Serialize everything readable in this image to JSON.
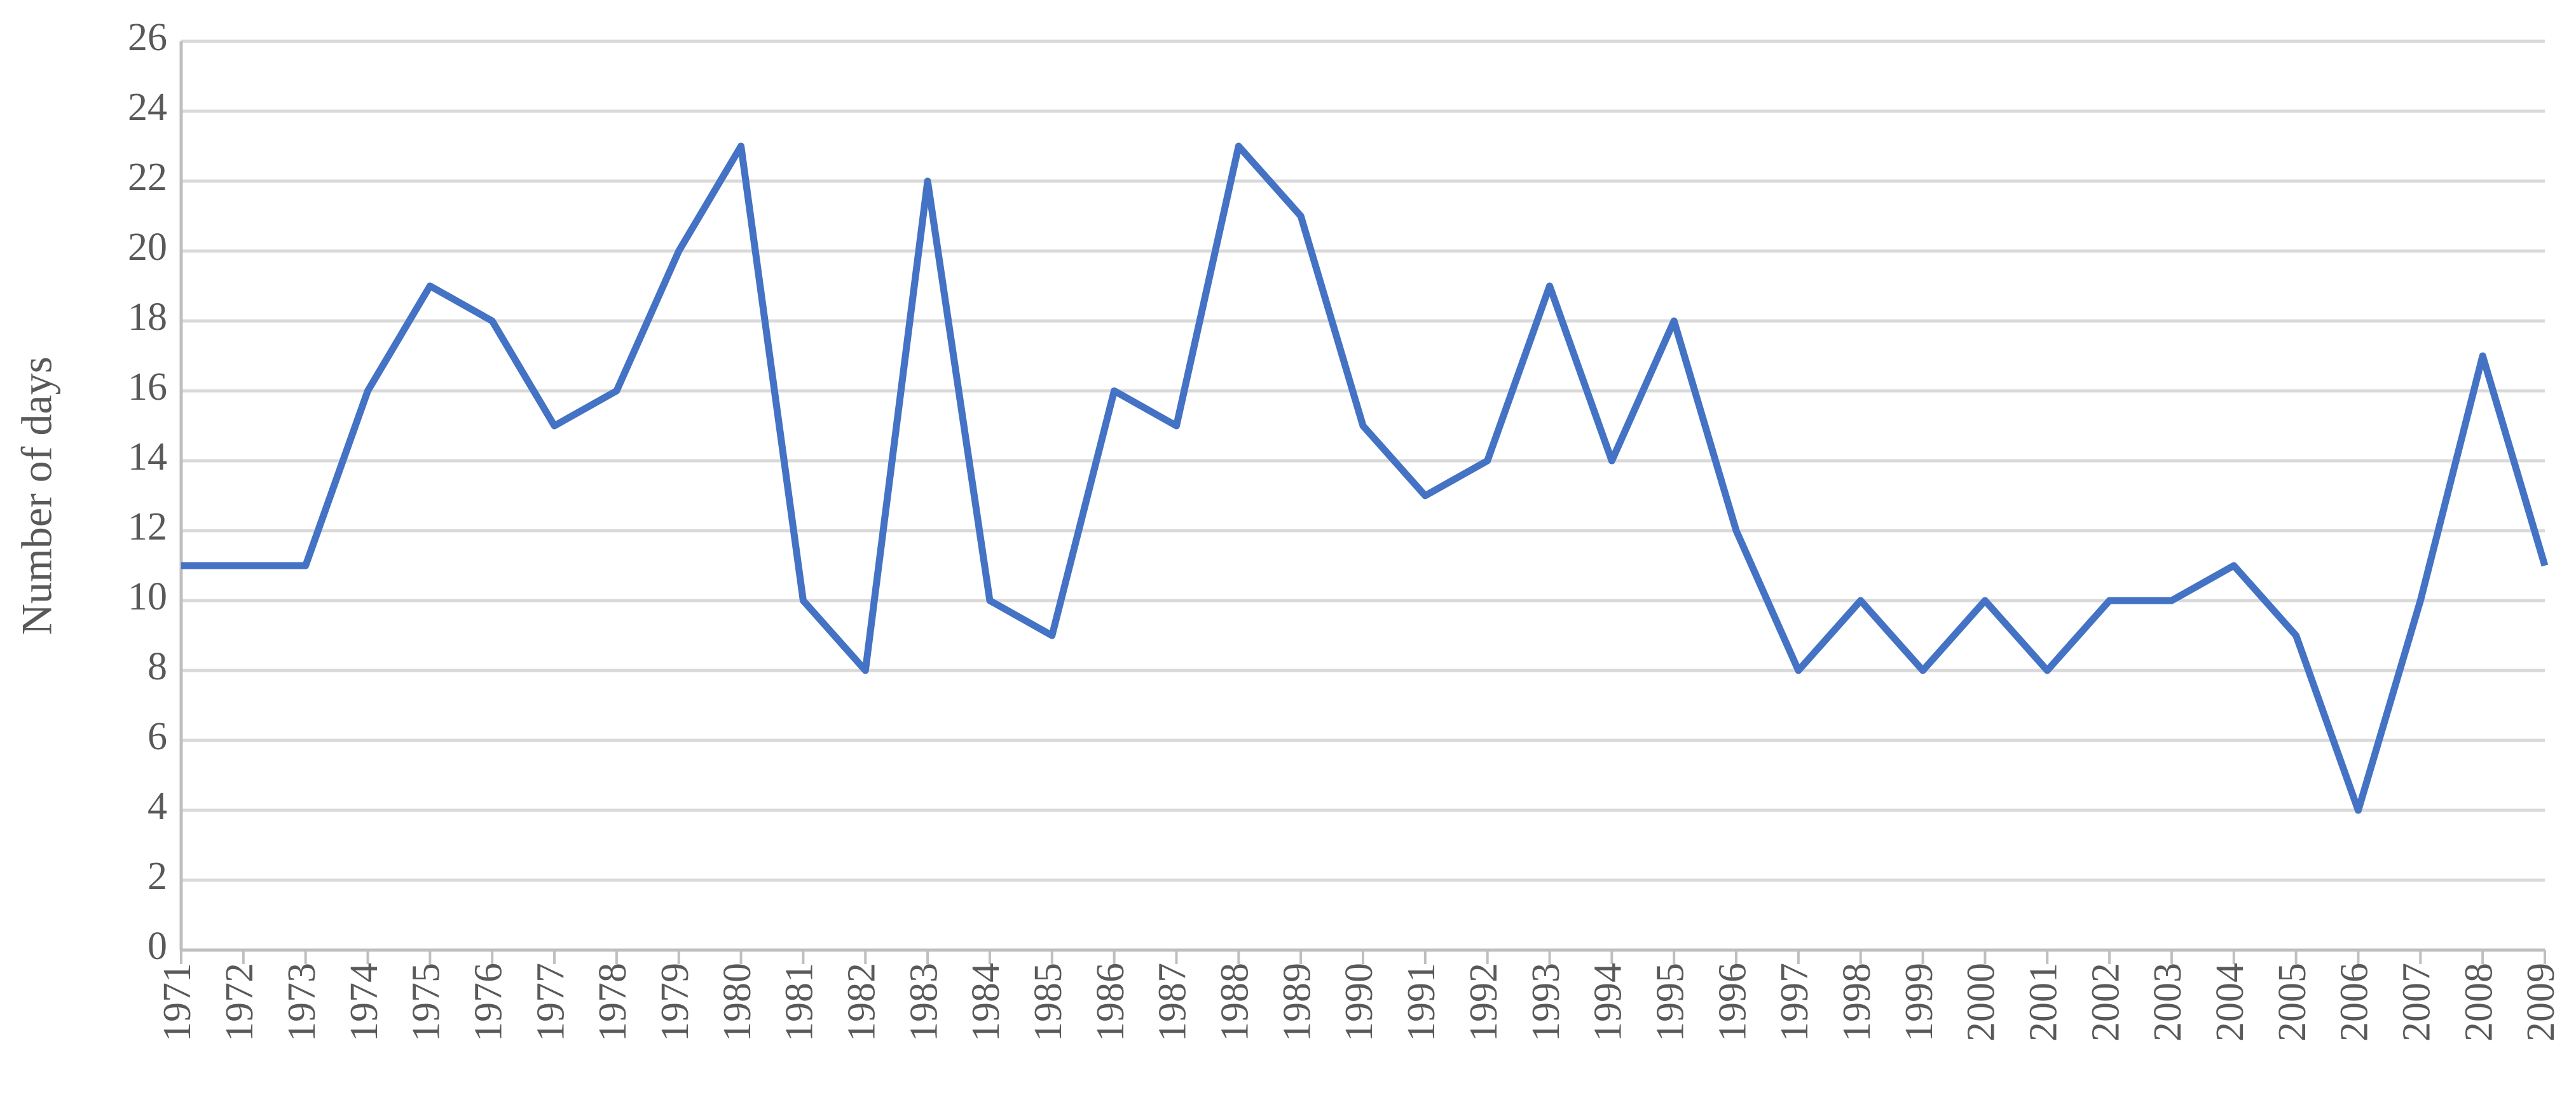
{
  "chart_data": {
    "type": "line",
    "y_label": "Number of days",
    "categories": [
      "1971",
      "1972",
      "1973",
      "1974",
      "1975",
      "1976",
      "1977",
      "1978",
      "1979",
      "1980",
      "1981",
      "1982",
      "1983",
      "1984",
      "1985",
      "1986",
      "1987",
      "1988",
      "1989",
      "1990",
      "1991",
      "1992",
      "1993",
      "1994",
      "1995",
      "1996",
      "1997",
      "1998",
      "1999",
      "2000",
      "2001",
      "2002",
      "2003",
      "2004",
      "2005",
      "2006",
      "2007",
      "2008",
      "2009"
    ],
    "values": [
      11,
      11,
      11,
      16,
      19,
      18,
      15,
      16,
      20,
      23,
      10,
      8,
      22,
      10,
      9,
      16,
      15,
      23,
      21,
      15,
      13,
      14,
      19,
      14,
      18,
      12,
      8,
      10,
      8,
      10,
      8,
      10,
      10,
      11,
      9,
      4,
      10,
      17,
      11
    ],
    "color": "#4472c4",
    "ylim": [
      0,
      26
    ],
    "yticks": [
      0,
      2,
      4,
      6,
      8,
      10,
      12,
      14,
      16,
      18,
      20,
      22,
      24,
      26
    ],
    "grid": true
  }
}
